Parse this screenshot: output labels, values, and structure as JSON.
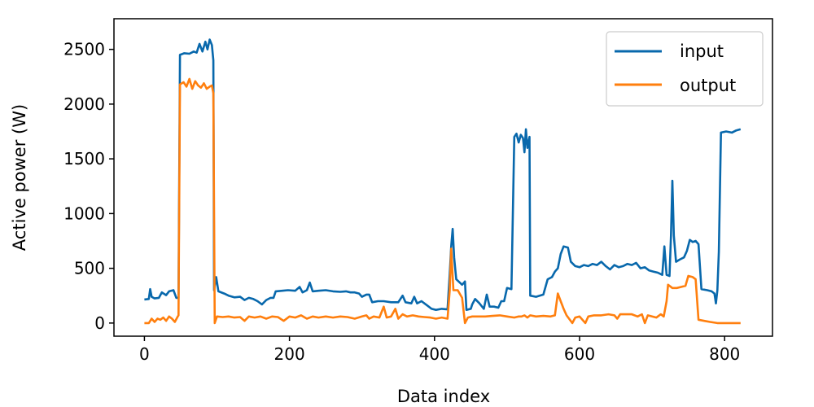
{
  "chart_data": {
    "type": "line",
    "title": "",
    "xlabel": "Data index",
    "ylabel": "Active power (W)",
    "xlim": [
      -42,
      866
    ],
    "ylim": [
      -120,
      2780
    ],
    "xticks": [
      0,
      200,
      400,
      600,
      800
    ],
    "yticks": [
      0,
      500,
      1000,
      1500,
      2000,
      2500
    ],
    "grid": false,
    "legend_position": "top-right",
    "series": [
      {
        "name": "input",
        "color": "#0868ac",
        "points": [
          [
            0,
            215
          ],
          [
            6,
            220
          ],
          [
            8,
            310
          ],
          [
            10,
            240
          ],
          [
            14,
            225
          ],
          [
            20,
            230
          ],
          [
            24,
            280
          ],
          [
            30,
            255
          ],
          [
            34,
            290
          ],
          [
            40,
            300
          ],
          [
            44,
            230
          ],
          [
            47,
            230
          ],
          [
            49,
            2450
          ],
          [
            55,
            2465
          ],
          [
            62,
            2460
          ],
          [
            68,
            2480
          ],
          [
            72,
            2470
          ],
          [
            76,
            2550
          ],
          [
            80,
            2480
          ],
          [
            84,
            2570
          ],
          [
            87,
            2500
          ],
          [
            90,
            2590
          ],
          [
            93,
            2540
          ],
          [
            95,
            2400
          ],
          [
            96,
            300
          ],
          [
            99,
            420
          ],
          [
            102,
            290
          ],
          [
            110,
            270
          ],
          [
            116,
            250
          ],
          [
            124,
            235
          ],
          [
            132,
            240
          ],
          [
            138,
            210
          ],
          [
            144,
            230
          ],
          [
            150,
            220
          ],
          [
            156,
            200
          ],
          [
            162,
            170
          ],
          [
            168,
            210
          ],
          [
            174,
            230
          ],
          [
            178,
            230
          ],
          [
            181,
            290
          ],
          [
            190,
            295
          ],
          [
            198,
            300
          ],
          [
            208,
            295
          ],
          [
            214,
            330
          ],
          [
            218,
            280
          ],
          [
            224,
            300
          ],
          [
            228,
            370
          ],
          [
            232,
            290
          ],
          [
            240,
            295
          ],
          [
            250,
            300
          ],
          [
            260,
            290
          ],
          [
            270,
            285
          ],
          [
            278,
            290
          ],
          [
            284,
            280
          ],
          [
            290,
            280
          ],
          [
            296,
            270
          ],
          [
            300,
            240
          ],
          [
            306,
            260
          ],
          [
            310,
            260
          ],
          [
            314,
            190
          ],
          [
            322,
            200
          ],
          [
            330,
            200
          ],
          [
            340,
            190
          ],
          [
            350,
            190
          ],
          [
            356,
            250
          ],
          [
            360,
            190
          ],
          [
            368,
            180
          ],
          [
            372,
            240
          ],
          [
            376,
            180
          ],
          [
            382,
            200
          ],
          [
            390,
            160
          ],
          [
            396,
            130
          ],
          [
            402,
            120
          ],
          [
            410,
            130
          ],
          [
            418,
            125
          ],
          [
            421,
            450
          ],
          [
            423,
            700
          ],
          [
            425,
            860
          ],
          [
            427,
            600
          ],
          [
            430,
            400
          ],
          [
            438,
            350
          ],
          [
            442,
            380
          ],
          [
            444,
            120
          ],
          [
            450,
            130
          ],
          [
            452,
            170
          ],
          [
            456,
            220
          ],
          [
            462,
            180
          ],
          [
            468,
            130
          ],
          [
            472,
            260
          ],
          [
            476,
            150
          ],
          [
            482,
            150
          ],
          [
            488,
            140
          ],
          [
            492,
            200
          ],
          [
            496,
            200
          ],
          [
            500,
            320
          ],
          [
            506,
            310
          ],
          [
            510,
            1700
          ],
          [
            513,
            1730
          ],
          [
            516,
            1650
          ],
          [
            519,
            1720
          ],
          [
            522,
            1690
          ],
          [
            524,
            1560
          ],
          [
            526,
            1770
          ],
          [
            528,
            1600
          ],
          [
            531,
            1700
          ],
          [
            532,
            250
          ],
          [
            540,
            240
          ],
          [
            550,
            260
          ],
          [
            556,
            400
          ],
          [
            562,
            420
          ],
          [
            566,
            470
          ],
          [
            570,
            500
          ],
          [
            574,
            630
          ],
          [
            578,
            700
          ],
          [
            584,
            690
          ],
          [
            588,
            560
          ],
          [
            594,
            520
          ],
          [
            600,
            510
          ],
          [
            606,
            530
          ],
          [
            612,
            520
          ],
          [
            618,
            540
          ],
          [
            624,
            530
          ],
          [
            630,
            560
          ],
          [
            636,
            520
          ],
          [
            642,
            490
          ],
          [
            648,
            530
          ],
          [
            654,
            510
          ],
          [
            660,
            520
          ],
          [
            666,
            540
          ],
          [
            672,
            530
          ],
          [
            678,
            550
          ],
          [
            684,
            500
          ],
          [
            690,
            510
          ],
          [
            696,
            480
          ],
          [
            702,
            470
          ],
          [
            708,
            460
          ],
          [
            714,
            440
          ],
          [
            717,
            700
          ],
          [
            720,
            440
          ],
          [
            724,
            430
          ],
          [
            726,
            800
          ],
          [
            728,
            1300
          ],
          [
            730,
            800
          ],
          [
            733,
            560
          ],
          [
            738,
            580
          ],
          [
            744,
            600
          ],
          [
            748,
            660
          ],
          [
            752,
            760
          ],
          [
            756,
            740
          ],
          [
            760,
            750
          ],
          [
            764,
            720
          ],
          [
            768,
            310
          ],
          [
            776,
            300
          ],
          [
            782,
            290
          ],
          [
            786,
            270
          ],
          [
            788,
            180
          ],
          [
            790,
            300
          ],
          [
            792,
            650
          ],
          [
            795,
            1740
          ],
          [
            802,
            1750
          ],
          [
            810,
            1740
          ],
          [
            816,
            1760
          ],
          [
            822,
            1770
          ]
        ]
      },
      {
        "name": "output",
        "color": "#ff7f0e",
        "points": [
          [
            0,
            0
          ],
          [
            6,
            0
          ],
          [
            10,
            40
          ],
          [
            14,
            10
          ],
          [
            18,
            40
          ],
          [
            22,
            30
          ],
          [
            26,
            50
          ],
          [
            30,
            20
          ],
          [
            34,
            60
          ],
          [
            38,
            40
          ],
          [
            42,
            10
          ],
          [
            46,
            60
          ],
          [
            47,
            70
          ],
          [
            49,
            2180
          ],
          [
            54,
            2200
          ],
          [
            58,
            2160
          ],
          [
            62,
            2230
          ],
          [
            66,
            2140
          ],
          [
            70,
            2210
          ],
          [
            74,
            2170
          ],
          [
            78,
            2150
          ],
          [
            82,
            2190
          ],
          [
            86,
            2140
          ],
          [
            90,
            2160
          ],
          [
            93,
            2170
          ],
          [
            95,
            2100
          ],
          [
            97,
            0
          ],
          [
            100,
            60
          ],
          [
            108,
            55
          ],
          [
            116,
            60
          ],
          [
            124,
            50
          ],
          [
            132,
            55
          ],
          [
            138,
            20
          ],
          [
            144,
            60
          ],
          [
            152,
            50
          ],
          [
            160,
            60
          ],
          [
            168,
            40
          ],
          [
            176,
            60
          ],
          [
            184,
            55
          ],
          [
            192,
            20
          ],
          [
            200,
            60
          ],
          [
            208,
            50
          ],
          [
            216,
            70
          ],
          [
            224,
            40
          ],
          [
            232,
            60
          ],
          [
            240,
            50
          ],
          [
            250,
            60
          ],
          [
            260,
            50
          ],
          [
            270,
            60
          ],
          [
            280,
            55
          ],
          [
            290,
            40
          ],
          [
            300,
            60
          ],
          [
            306,
            70
          ],
          [
            310,
            40
          ],
          [
            316,
            60
          ],
          [
            324,
            50
          ],
          [
            330,
            150
          ],
          [
            334,
            50
          ],
          [
            340,
            60
          ],
          [
            346,
            130
          ],
          [
            350,
            40
          ],
          [
            356,
            80
          ],
          [
            362,
            60
          ],
          [
            370,
            70
          ],
          [
            378,
            60
          ],
          [
            386,
            55
          ],
          [
            394,
            50
          ],
          [
            402,
            40
          ],
          [
            410,
            50
          ],
          [
            418,
            40
          ],
          [
            421,
            300
          ],
          [
            423,
            680
          ],
          [
            426,
            300
          ],
          [
            432,
            300
          ],
          [
            438,
            230
          ],
          [
            442,
            0
          ],
          [
            446,
            50
          ],
          [
            452,
            60
          ],
          [
            460,
            60
          ],
          [
            470,
            60
          ],
          [
            480,
            65
          ],
          [
            490,
            70
          ],
          [
            500,
            60
          ],
          [
            510,
            50
          ],
          [
            516,
            60
          ],
          [
            520,
            60
          ],
          [
            524,
            70
          ],
          [
            528,
            50
          ],
          [
            532,
            70
          ],
          [
            540,
            60
          ],
          [
            550,
            65
          ],
          [
            560,
            60
          ],
          [
            566,
            70
          ],
          [
            570,
            270
          ],
          [
            574,
            200
          ],
          [
            578,
            130
          ],
          [
            582,
            70
          ],
          [
            590,
            0
          ],
          [
            594,
            50
          ],
          [
            600,
            60
          ],
          [
            608,
            0
          ],
          [
            612,
            60
          ],
          [
            620,
            70
          ],
          [
            630,
            70
          ],
          [
            640,
            80
          ],
          [
            648,
            70
          ],
          [
            652,
            40
          ],
          [
            656,
            80
          ],
          [
            664,
            80
          ],
          [
            672,
            80
          ],
          [
            680,
            60
          ],
          [
            686,
            80
          ],
          [
            690,
            0
          ],
          [
            694,
            70
          ],
          [
            700,
            60
          ],
          [
            706,
            50
          ],
          [
            712,
            80
          ],
          [
            716,
            60
          ],
          [
            720,
            200
          ],
          [
            722,
            350
          ],
          [
            728,
            320
          ],
          [
            734,
            320
          ],
          [
            740,
            330
          ],
          [
            746,
            340
          ],
          [
            750,
            430
          ],
          [
            756,
            420
          ],
          [
            760,
            400
          ],
          [
            764,
            30
          ],
          [
            772,
            20
          ],
          [
            780,
            10
          ],
          [
            790,
            0
          ],
          [
            800,
            0
          ],
          [
            810,
            0
          ],
          [
            822,
            0
          ]
        ]
      }
    ]
  }
}
